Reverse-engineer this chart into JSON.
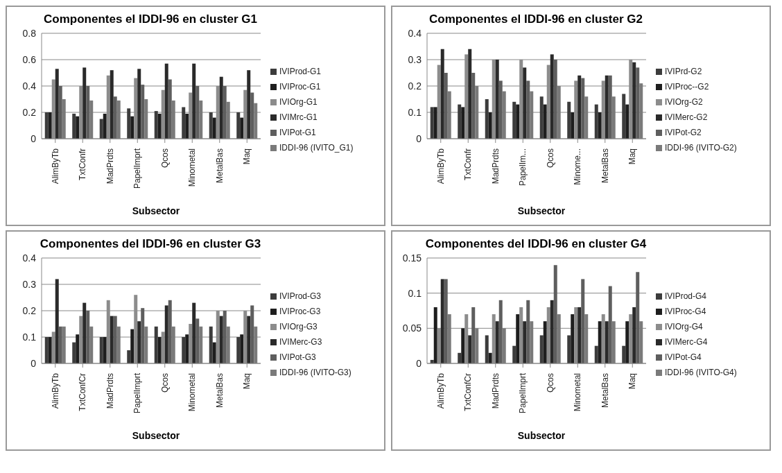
{
  "chart_data": [
    {
      "type": "bar",
      "title": "Componentes el IDDI-96 en cluster G1",
      "xlabel": "Subsector",
      "categories": [
        "AlimByTb",
        "TxtConfr",
        "MadPrdts",
        "PapelImprt",
        "Qcos",
        "Minometal",
        "MetalBas",
        "Maq"
      ],
      "ylim": [
        0,
        0.8
      ],
      "yticks": [
        0,
        0.2,
        0.4,
        0.6,
        0.8
      ],
      "grid": "y",
      "legend": "right",
      "series": [
        {
          "name": "IVIProd-G1",
          "color": "#3c3c3c",
          "values": [
            0.2,
            0.19,
            0.15,
            0.23,
            0.21,
            0.24,
            0.2,
            0.2
          ]
        },
        {
          "name": "IVIProc-G1",
          "color": "#1e1e1e",
          "values": [
            0.2,
            0.17,
            0.19,
            0.17,
            0.19,
            0.19,
            0.16,
            0.16
          ]
        },
        {
          "name": "IVIOrg-G1",
          "color": "#8c8c8c",
          "values": [
            0.45,
            0.4,
            0.48,
            0.46,
            0.37,
            0.35,
            0.4,
            0.37
          ]
        },
        {
          "name": "IVIMrc-G1",
          "color": "#2a2a2a",
          "values": [
            0.53,
            0.54,
            0.52,
            0.53,
            0.57,
            0.57,
            0.47,
            0.52
          ]
        },
        {
          "name": "IVIPot-G1",
          "color": "#5e5e5e",
          "values": [
            0.4,
            0.4,
            0.32,
            0.41,
            0.45,
            0.4,
            0.4,
            0.35
          ]
        },
        {
          "name": "IDDI-96 (IVITO_G1)",
          "color": "#7a7a7a",
          "values": [
            0.3,
            0.29,
            0.29,
            0.3,
            0.29,
            0.29,
            0.28,
            0.27
          ]
        }
      ]
    },
    {
      "type": "bar",
      "title": "Componentes el IDDI-96 en cluster G2",
      "xlabel": "Subsector",
      "categories": [
        "AlimByTb",
        "TxtConfr",
        "MadPrdts",
        "PapelIm...",
        "Qcos",
        "Minome...",
        "MetalBas",
        "Maq"
      ],
      "ylim": [
        0,
        0.4
      ],
      "yticks": [
        0,
        0.1,
        0.2,
        0.3,
        0.4
      ],
      "grid": "y",
      "legend": "right",
      "series": [
        {
          "name": "IVIPrd-G2",
          "color": "#3c3c3c",
          "values": [
            0.12,
            0.13,
            0.15,
            0.14,
            0.16,
            0.14,
            0.13,
            0.17
          ]
        },
        {
          "name": "IVIProc--G2",
          "color": "#1e1e1e",
          "values": [
            0.12,
            0.12,
            0.1,
            0.13,
            0.13,
            0.1,
            0.1,
            0.13
          ]
        },
        {
          "name": "IVIOrg-G2",
          "color": "#8c8c8c",
          "values": [
            0.28,
            0.32,
            0.3,
            0.3,
            0.28,
            0.22,
            0.22,
            0.3
          ]
        },
        {
          "name": "IVIMerc-G2",
          "color": "#2a2a2a",
          "values": [
            0.34,
            0.34,
            0.3,
            0.27,
            0.32,
            0.24,
            0.24,
            0.29
          ]
        },
        {
          "name": "IVIPot-G2",
          "color": "#5e5e5e",
          "values": [
            0.25,
            0.25,
            0.22,
            0.22,
            0.3,
            0.23,
            0.24,
            0.27
          ]
        },
        {
          "name": "IDDI-96 (IVITO-G2)",
          "color": "#7a7a7a",
          "values": [
            0.18,
            0.2,
            0.18,
            0.18,
            0.2,
            0.16,
            0.16,
            0.21
          ]
        }
      ]
    },
    {
      "type": "bar",
      "title": "Componentes del IDDI-96 en cluster G3",
      "xlabel": "Subsector",
      "categories": [
        "AlimByTb",
        "TxtConfCr",
        "MadPrdts",
        "PapelImprt",
        "Qcos",
        "Minometal",
        "MetalBas",
        "Maq"
      ],
      "ylim": [
        0,
        0.4
      ],
      "yticks": [
        0,
        0.1,
        0.2,
        0.3,
        0.4
      ],
      "grid": "y",
      "legend": "right",
      "series": [
        {
          "name": "IVIProd-G3",
          "color": "#3c3c3c",
          "values": [
            0.1,
            0.08,
            0.1,
            0.05,
            0.14,
            0.1,
            0.14,
            0.1
          ]
        },
        {
          "name": "IVIProc-G3",
          "color": "#1e1e1e",
          "values": [
            0.1,
            0.11,
            0.1,
            0.13,
            0.1,
            0.11,
            0.08,
            0.11
          ]
        },
        {
          "name": "IVIOrg-G3",
          "color": "#8c8c8c",
          "values": [
            0.12,
            0.18,
            0.24,
            0.26,
            0.12,
            0.15,
            0.2,
            0.2
          ]
        },
        {
          "name": "IVIMerc-G3",
          "color": "#2a2a2a",
          "values": [
            0.32,
            0.23,
            0.18,
            0.16,
            0.22,
            0.23,
            0.18,
            0.18
          ]
        },
        {
          "name": "IVIPot-G3",
          "color": "#5e5e5e",
          "values": [
            0.14,
            0.2,
            0.18,
            0.21,
            0.24,
            0.17,
            0.2,
            0.22
          ]
        },
        {
          "name": "IDDI-96 (IVITO-G3)",
          "color": "#7a7a7a",
          "values": [
            0.14,
            0.14,
            0.14,
            0.14,
            0.14,
            0.14,
            0.14,
            0.14
          ]
        }
      ]
    },
    {
      "type": "bar",
      "title": "Componentes del IDDI-96 en cluster G4",
      "xlabel": "Subsector",
      "categories": [
        "AlimByTb",
        "TxtConfCr",
        "MadPrdts",
        "PapelImprt",
        "Qcos",
        "Minometal",
        "MetalBas",
        "Maq"
      ],
      "ylim": [
        0,
        0.15
      ],
      "yticks": [
        0,
        0.05,
        0.1,
        0.15
      ],
      "grid": "y",
      "legend": "right",
      "series": [
        {
          "name": "IVIProd-G4",
          "color": "#3c3c3c",
          "values": [
            0.005,
            0.015,
            0.04,
            0.025,
            0.04,
            0.04,
            0.025,
            0.025
          ]
        },
        {
          "name": "IVIProc-G4",
          "color": "#1e1e1e",
          "values": [
            0.08,
            0.05,
            0.015,
            0.07,
            0.06,
            0.07,
            0.06,
            0.06
          ]
        },
        {
          "name": "IVIOrg-G4",
          "color": "#8c8c8c",
          "values": [
            0.05,
            0.07,
            0.07,
            0.08,
            0.08,
            0.08,
            0.07,
            0.07
          ]
        },
        {
          "name": "IVIMerc-G4",
          "color": "#2a2a2a",
          "values": [
            0.12,
            0.04,
            0.06,
            0.06,
            0.09,
            0.08,
            0.06,
            0.08
          ]
        },
        {
          "name": "IVIPot-G4",
          "color": "#5e5e5e",
          "values": [
            0.12,
            0.08,
            0.09,
            0.09,
            0.14,
            0.12,
            0.11,
            0.13
          ]
        },
        {
          "name": "IDDI-96 (IVITO-G4)",
          "color": "#7a7a7a",
          "values": [
            0.07,
            0.05,
            0.05,
            0.06,
            0.07,
            0.07,
            0.06,
            0.06
          ]
        }
      ]
    }
  ]
}
